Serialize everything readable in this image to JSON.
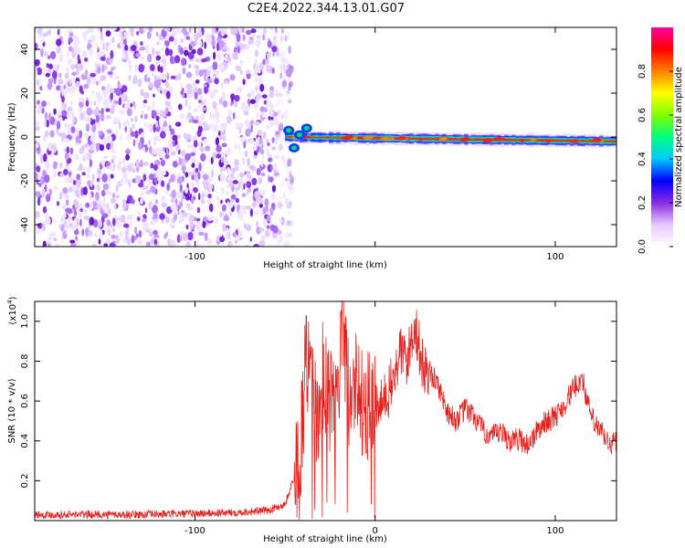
{
  "title": "C2E4.2022.344.13.01.G07",
  "chart_data": [
    {
      "type": "heatmap",
      "xlabel": "Height of straight line (km)",
      "ylabel": "Frequency (Hz)",
      "xlim": [
        -189,
        134
      ],
      "ylim": [
        -50,
        50
      ],
      "xticks": [
        -100,
        0,
        100
      ],
      "xtick_labels": [
        "-100",
        "",
        "100"
      ],
      "yticks": [
        -40,
        -20,
        0,
        20,
        40
      ],
      "colorbar": {
        "label": "Normalized spectral amplitude",
        "range": [
          0,
          1
        ],
        "ticks": [
          "0.0",
          "0.2",
          "0.4",
          "0.6",
          "0.8"
        ],
        "colors": [
          "#ffffff",
          "#e6c8ff",
          "#8a2be2",
          "#0000ff",
          "#00c8ff",
          "#00ff80",
          "#80ff00",
          "#ffff00",
          "#ff8000",
          "#ff0000",
          "#ff00a0"
        ]
      },
      "regions": [
        {
          "name": "noise",
          "x": [
            -189,
            -50
          ],
          "y": [
            -50,
            50
          ],
          "amplitude": [
            0.0,
            0.15
          ]
        },
        {
          "name": "signal",
          "x": [
            -50,
            134
          ],
          "center_y": [
            0,
            -2
          ],
          "amplitude": [
            0.3,
            0.95
          ]
        }
      ]
    },
    {
      "type": "line",
      "xlabel": "Height of straight line (km)",
      "ylabel": "SNR (10 * v/v)",
      "multiplier": "(x10",
      "multiplier_exp": "4",
      "multiplier_close": ")",
      "xlim": [
        -189,
        134
      ],
      "ylim": [
        0,
        1.1
      ],
      "xticks": [
        -100,
        0,
        100
      ],
      "xtick_labels": [
        "-100",
        "0",
        "100"
      ],
      "yticks": [
        0.2,
        0.4,
        0.6,
        0.8,
        1.0
      ],
      "ytick_labels": [
        "0.2",
        "0.4",
        "0.6",
        "0.8",
        "1.0"
      ],
      "color": "#e8201c",
      "x": [
        -189,
        -160,
        -130,
        -100,
        -80,
        -60,
        -50,
        -42,
        -38,
        -32,
        -28,
        -22,
        -18,
        -14,
        -10,
        -6,
        -2,
        2,
        6,
        10,
        14,
        18,
        22,
        26,
        30,
        35,
        40,
        45,
        50,
        55,
        60,
        65,
        70,
        75,
        80,
        85,
        90,
        95,
        100,
        105,
        110,
        115,
        118,
        122,
        126,
        130,
        134
      ],
      "y": [
        0.03,
        0.03,
        0.03,
        0.035,
        0.04,
        0.05,
        0.08,
        0.3,
        0.85,
        0.5,
        0.65,
        0.55,
        0.95,
        0.6,
        0.7,
        0.55,
        0.6,
        0.55,
        0.62,
        0.7,
        0.85,
        0.8,
        1.0,
        0.78,
        0.75,
        0.68,
        0.55,
        0.5,
        0.56,
        0.52,
        0.45,
        0.42,
        0.44,
        0.4,
        0.41,
        0.38,
        0.45,
        0.5,
        0.52,
        0.58,
        0.66,
        0.72,
        0.58,
        0.48,
        0.44,
        0.38,
        0.4
      ]
    }
  ]
}
